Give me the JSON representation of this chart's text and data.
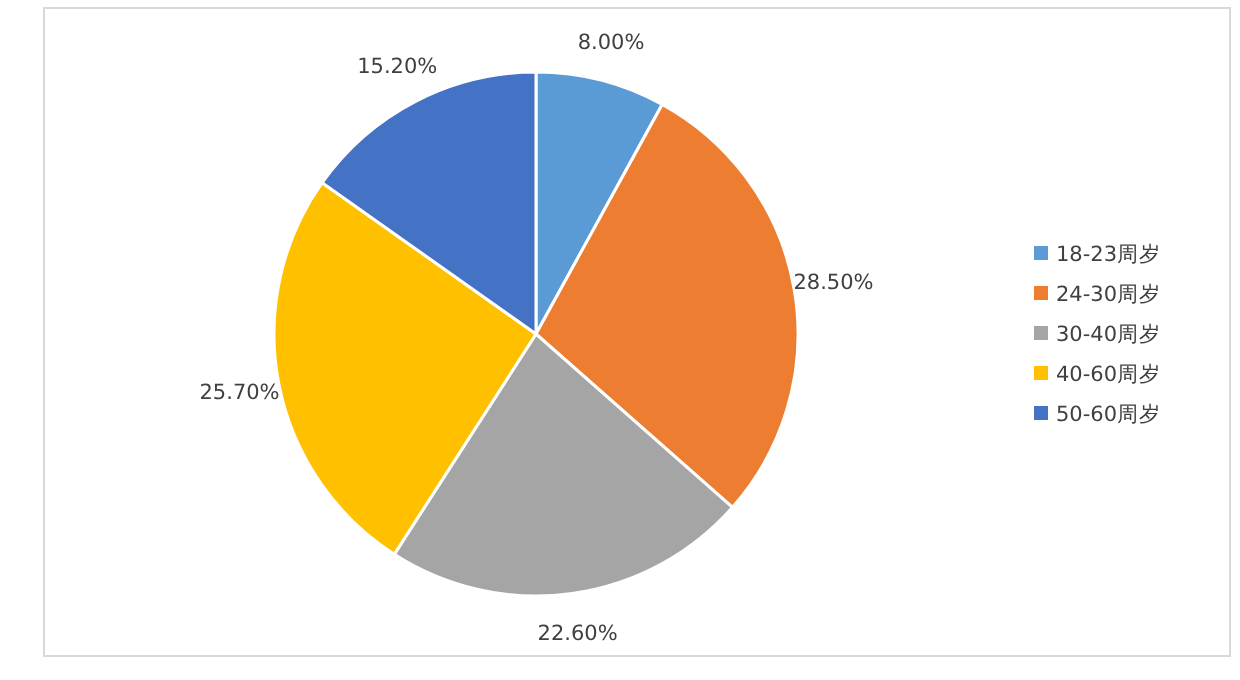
{
  "chart_data": {
    "type": "pie",
    "categories": [
      "18-23周岁",
      "24-30周岁",
      "30-40周岁",
      "40-60周岁",
      "50-60周岁"
    ],
    "values": [
      8.0,
      28.5,
      22.6,
      25.7,
      15.2
    ],
    "colors": [
      "#5b9bd5",
      "#ed7d31",
      "#a5a5a5",
      "#ffc000",
      "#4472c4"
    ],
    "value_labels": [
      "8.00%",
      "28.50%",
      "22.60%",
      "25.70%",
      "15.20%"
    ],
    "legend": "right"
  }
}
